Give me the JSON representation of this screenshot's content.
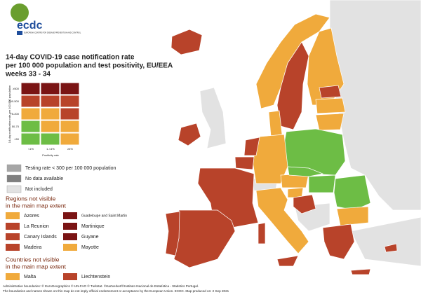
{
  "header": {
    "logo": "ecdc",
    "agency": "EUROPEAN CENTRE FOR DISEASE PREVENTION AND CONTROL",
    "title": [
      "14-day COVID-19 case notification rate",
      "per 100 000 population and test positivity, EU/EEA",
      "weeks 33 - 34"
    ]
  },
  "palette": {
    "dark-red": "#7a1414",
    "red": "#b8432a",
    "orange": "#f0aa3c",
    "green": "#6dbd45",
    "grey-dark": "#a6a6a6",
    "grey": "#7f7f7f",
    "grey-light": "#e2e2e2"
  },
  "matrix": {
    "y_label": "14-day notification rate per 100 000 population",
    "x_label": "Positivity rate",
    "rows": [
      "≥500",
      "200-500",
      "75-200",
      "50-75",
      "<50"
    ],
    "columns": [
      "<1%",
      "1-<4%",
      "≥4%"
    ],
    "cells": [
      [
        "dark-red",
        "dark-red",
        "dark-red"
      ],
      [
        "red",
        "red",
        "red"
      ],
      [
        "orange",
        "orange",
        "red"
      ],
      [
        "green",
        "orange",
        "orange"
      ],
      [
        "green",
        "green",
        "orange"
      ]
    ]
  },
  "legend": [
    {
      "label": "Testing rate < 300 per 100 000 population",
      "color": "grey-dark"
    },
    {
      "label": "No data available",
      "color": "grey"
    },
    {
      "label": "Not included",
      "color": "grey-light"
    }
  ],
  "regions": {
    "title": [
      "Regions not visible",
      "in the main map extent"
    ],
    "items": [
      {
        "label": "Azores",
        "color": "orange"
      },
      {
        "label": "Guadeloupe and Saint Martin",
        "color": "dark-red"
      },
      {
        "label": "La Reunion",
        "color": "red"
      },
      {
        "label": "Martinique",
        "color": "dark-red"
      },
      {
        "label": "Canary Islands",
        "color": "red"
      },
      {
        "label": "Guyane",
        "color": "dark-red"
      },
      {
        "label": "Madeira",
        "color": "red"
      },
      {
        "label": "Mayotte",
        "color": "orange"
      }
    ]
  },
  "countries": {
    "title": [
      "Countries not visible",
      "in the main map extent"
    ],
    "items": [
      {
        "label": "Malta",
        "color": "orange"
      },
      {
        "label": "Liechtenstein",
        "color": "red"
      }
    ]
  },
  "footer": [
    "Administrative boundaries: © EuroGeographics © UN-FAO © Turkstat. ©Kartverket/©Instituto Nacional de Estatística - Statistics Portugal.",
    "The boundaries and names shown on this map do not imply official endorsement or acceptance by the European Union. ECDC. Map produced on: 2 Sep 2021"
  ]
}
